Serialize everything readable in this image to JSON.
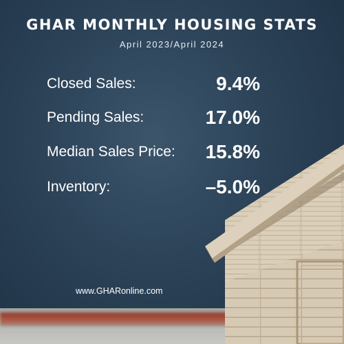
{
  "header": {
    "title": "GHAR MONTHLY HOUSING STATS",
    "subtitle": "April 2023/April 2024"
  },
  "stats": [
    {
      "label": "Closed Sales:",
      "value": "9.4%"
    },
    {
      "label": "Pending Sales:",
      "value": "17.0%"
    },
    {
      "label": "Median Sales Price:",
      "value": "15.8%"
    },
    {
      "label": "Inventory:",
      "value": "–5.0%"
    }
  ],
  "footer": {
    "website": "www.GHARonline.com"
  },
  "colors": {
    "background": "#2b4257",
    "text": "#ffffff",
    "wood": "#d8cbb6"
  },
  "decoration": {
    "image": "wooden-house-model"
  }
}
